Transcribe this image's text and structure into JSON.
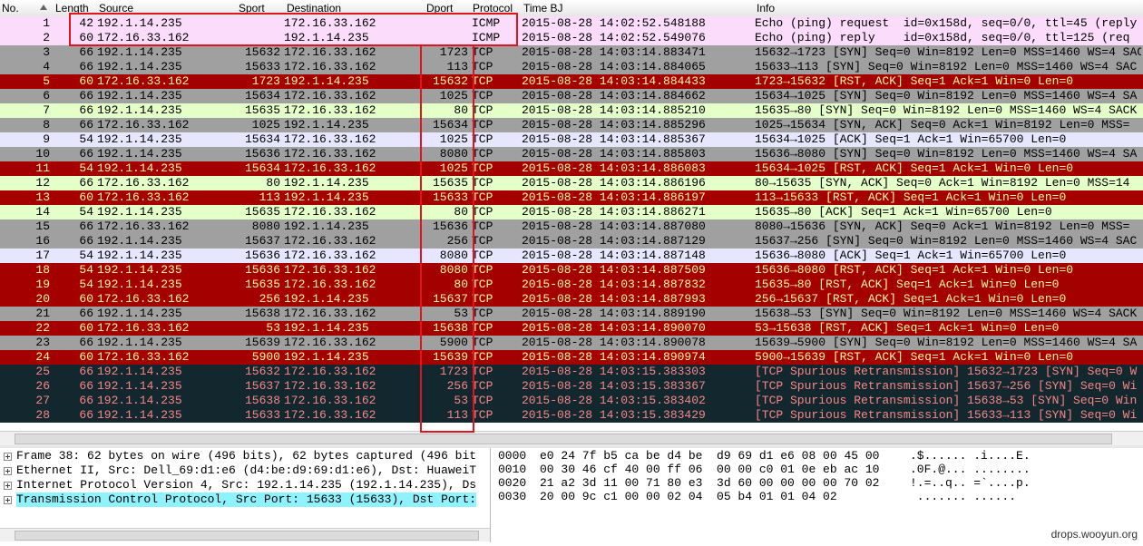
{
  "table": {
    "columns": [
      "No.",
      "Length",
      "Source",
      "Sport",
      "Destination",
      "Dport",
      "Protocol",
      "Time BJ",
      "Info"
    ],
    "rows": [
      [
        "1",
        "42",
        "192.1.14.235",
        null,
        "172.16.33.162",
        null,
        "ICMP",
        "2015-08-28 14:02:52.548188",
        "Echo (ping) request  id=0x158d, seq=0/0, ttl=45 (reply"
      ],
      [
        "2",
        "60",
        "172.16.33.162",
        null,
        "192.1.14.235",
        null,
        "ICMP",
        "2015-08-28 14:02:52.549076",
        "Echo (ping) reply    id=0x158d, seq=0/0, ttl=125 (req"
      ],
      [
        "3",
        "66",
        "192.1.14.235",
        "15632",
        "172.16.33.162",
        "1723",
        "TCP",
        "2015-08-28 14:03:14.883471",
        "15632→1723 [SYN] Seq=0 Win=8192 Len=0 MSS=1460 WS=4 SAC"
      ],
      [
        "4",
        "66",
        "192.1.14.235",
        "15633",
        "172.16.33.162",
        "113",
        "TCP",
        "2015-08-28 14:03:14.884065",
        "15633→113 [SYN] Seq=0 Win=8192 Len=0 MSS=1460 WS=4 SAC"
      ],
      [
        "5",
        "60",
        "172.16.33.162",
        "1723",
        "192.1.14.235",
        "15632",
        "TCP",
        "2015-08-28 14:03:14.884433",
        "1723→15632 [RST, ACK] Seq=1 Ack=1 Win=0 Len=0"
      ],
      [
        "6",
        "66",
        "192.1.14.235",
        "15634",
        "172.16.33.162",
        "1025",
        "TCP",
        "2015-08-28 14:03:14.884662",
        "15634→1025 [SYN] Seq=0 Win=8192 Len=0 MSS=1460 WS=4 SA"
      ],
      [
        "7",
        "66",
        "192.1.14.235",
        "15635",
        "172.16.33.162",
        "80",
        "TCP",
        "2015-08-28 14:03:14.885210",
        "15635→80 [SYN] Seq=0 Win=8192 Len=0 MSS=1460 WS=4 SACK"
      ],
      [
        "8",
        "66",
        "172.16.33.162",
        "1025",
        "192.1.14.235",
        "15634",
        "TCP",
        "2015-08-28 14:03:14.885296",
        "1025→15634 [SYN, ACK] Seq=0 Ack=1 Win=8192 Len=0 MSS="
      ],
      [
        "9",
        "54",
        "192.1.14.235",
        "15634",
        "172.16.33.162",
        "1025",
        "TCP",
        "2015-08-28 14:03:14.885367",
        "15634→1025 [ACK] Seq=1 Ack=1 Win=65700 Len=0"
      ],
      [
        "10",
        "66",
        "192.1.14.235",
        "15636",
        "172.16.33.162",
        "8080",
        "TCP",
        "2015-08-28 14:03:14.885803",
        "15636→8080 [SYN] Seq=0 Win=8192 Len=0 MSS=1460 WS=4 SA"
      ],
      [
        "11",
        "54",
        "192.1.14.235",
        "15634",
        "172.16.33.162",
        "1025",
        "TCP",
        "2015-08-28 14:03:14.886083",
        "15634→1025 [RST, ACK] Seq=1 Ack=1 Win=0 Len=0"
      ],
      [
        "12",
        "66",
        "172.16.33.162",
        "80",
        "192.1.14.235",
        "15635",
        "TCP",
        "2015-08-28 14:03:14.886196",
        "80→15635 [SYN, ACK] Seq=0 Ack=1 Win=8192 Len=0 MSS=14"
      ],
      [
        "13",
        "60",
        "172.16.33.162",
        "113",
        "192.1.14.235",
        "15633",
        "TCP",
        "2015-08-28 14:03:14.886197",
        "113→15633 [RST, ACK] Seq=1 Ack=1 Win=0 Len=0"
      ],
      [
        "14",
        "54",
        "192.1.14.235",
        "15635",
        "172.16.33.162",
        "80",
        "TCP",
        "2015-08-28 14:03:14.886271",
        "15635→80 [ACK] Seq=1 Ack=1 Win=65700 Len=0"
      ],
      [
        "15",
        "66",
        "172.16.33.162",
        "8080",
        "192.1.14.235",
        "15636",
        "TCP",
        "2015-08-28 14:03:14.887080",
        "8080→15636 [SYN, ACK] Seq=0 Ack=1 Win=8192 Len=0 MSS="
      ],
      [
        "16",
        "66",
        "192.1.14.235",
        "15637",
        "172.16.33.162",
        "256",
        "TCP",
        "2015-08-28 14:03:14.887129",
        "15637→256 [SYN] Seq=0 Win=8192 Len=0 MSS=1460 WS=4 SAC"
      ],
      [
        "17",
        "54",
        "192.1.14.235",
        "15636",
        "172.16.33.162",
        "8080",
        "TCP",
        "2015-08-28 14:03:14.887148",
        "15636→8080 [ACK] Seq=1 Ack=1 Win=65700 Len=0"
      ],
      [
        "18",
        "54",
        "192.1.14.235",
        "15636",
        "172.16.33.162",
        "8080",
        "TCP",
        "2015-08-28 14:03:14.887509",
        "15636→8080 [RST, ACK] Seq=1 Ack=1 Win=0 Len=0"
      ],
      [
        "19",
        "54",
        "192.1.14.235",
        "15635",
        "172.16.33.162",
        "80",
        "TCP",
        "2015-08-28 14:03:14.887832",
        "15635→80 [RST, ACK] Seq=1 Ack=1 Win=0 Len=0"
      ],
      [
        "20",
        "60",
        "172.16.33.162",
        "256",
        "192.1.14.235",
        "15637",
        "TCP",
        "2015-08-28 14:03:14.887993",
        "256→15637 [RST, ACK] Seq=1 Ack=1 Win=0 Len=0"
      ],
      [
        "21",
        "66",
        "192.1.14.235",
        "15638",
        "172.16.33.162",
        "53",
        "TCP",
        "2015-08-28 14:03:14.889190",
        "15638→53 [SYN] Seq=0 Win=8192 Len=0 MSS=1460 WS=4 SACK"
      ],
      [
        "22",
        "60",
        "172.16.33.162",
        "53",
        "192.1.14.235",
        "15638",
        "TCP",
        "2015-08-28 14:03:14.890070",
        "53→15638 [RST, ACK] Seq=1 Ack=1 Win=0 Len=0"
      ],
      [
        "23",
        "66",
        "192.1.14.235",
        "15639",
        "172.16.33.162",
        "5900",
        "TCP",
        "2015-08-28 14:03:14.890078",
        "15639→5900 [SYN] Seq=0 Win=8192 Len=0 MSS=1460 WS=4 SA"
      ],
      [
        "24",
        "60",
        "172.16.33.162",
        "5900",
        "192.1.14.235",
        "15639",
        "TCP",
        "2015-08-28 14:03:14.890974",
        "5900→15639 [RST, ACK] Seq=1 Ack=1 Win=0 Len=0"
      ],
      [
        "25",
        "66",
        "192.1.14.235",
        "15632",
        "172.16.33.162",
        "1723",
        "TCP",
        "2015-08-28 14:03:15.383303",
        "[TCP Spurious Retransmission] 15632→1723 [SYN] Seq=0 W"
      ],
      [
        "26",
        "66",
        "192.1.14.235",
        "15637",
        "172.16.33.162",
        "256",
        "TCP",
        "2015-08-28 14:03:15.383367",
        "[TCP Spurious Retransmission] 15637→256 [SYN] Seq=0 Wi"
      ],
      [
        "27",
        "66",
        "192.1.14.235",
        "15638",
        "172.16.33.162",
        "53",
        "TCP",
        "2015-08-28 14:03:15.383402",
        "[TCP Spurious Retransmission] 15638→53 [SYN] Seq=0 Win"
      ],
      [
        "28",
        "66",
        "192.1.14.235",
        "15633",
        "172.16.33.162",
        "113",
        "TCP",
        "2015-08-28 14:03:15.383429",
        "[TCP Spurious Retransmission] 15633→113 [SYN] Seq=0 Wi"
      ]
    ]
  },
  "details": [
    "Frame 38: 62 bytes on wire (496 bits), 62 bytes captured (496 bit",
    "Ethernet II, Src: Dell_69:d1:e6 (d4:be:d9:69:d1:e6), Dst: HuaweiT",
    "Internet Protocol Version 4, Src: 192.1.14.235 (192.1.14.235), Ds",
    "Transmission Control Protocol, Src Port: 15633 (15633), Dst Port:"
  ],
  "hex": [
    {
      "offset": "0000",
      "bytes": "e0 24 7f b5 ca be d4 be  d9 69 d1 e6 08 00 45 00",
      "ascii": ".$...... .i....E."
    },
    {
      "offset": "0010",
      "bytes": "00 30 46 cf 40 00 ff 06  00 00 c0 01 0e eb ac 10",
      "ascii": ".0F.@... ........"
    },
    {
      "offset": "0020",
      "bytes": "21 a2 3d 11 00 71 80 e3  3d 60 00 00 00 00 70 02",
      "ascii": "!.=..q.. =`....p."
    },
    {
      "offset": "0030",
      "bytes": "20 00 9c c1 00 00 02 04  05 b4 01 01 04 02",
      "ascii": " ....... ......"
    }
  ],
  "watermark": "drops.wooyun.org"
}
